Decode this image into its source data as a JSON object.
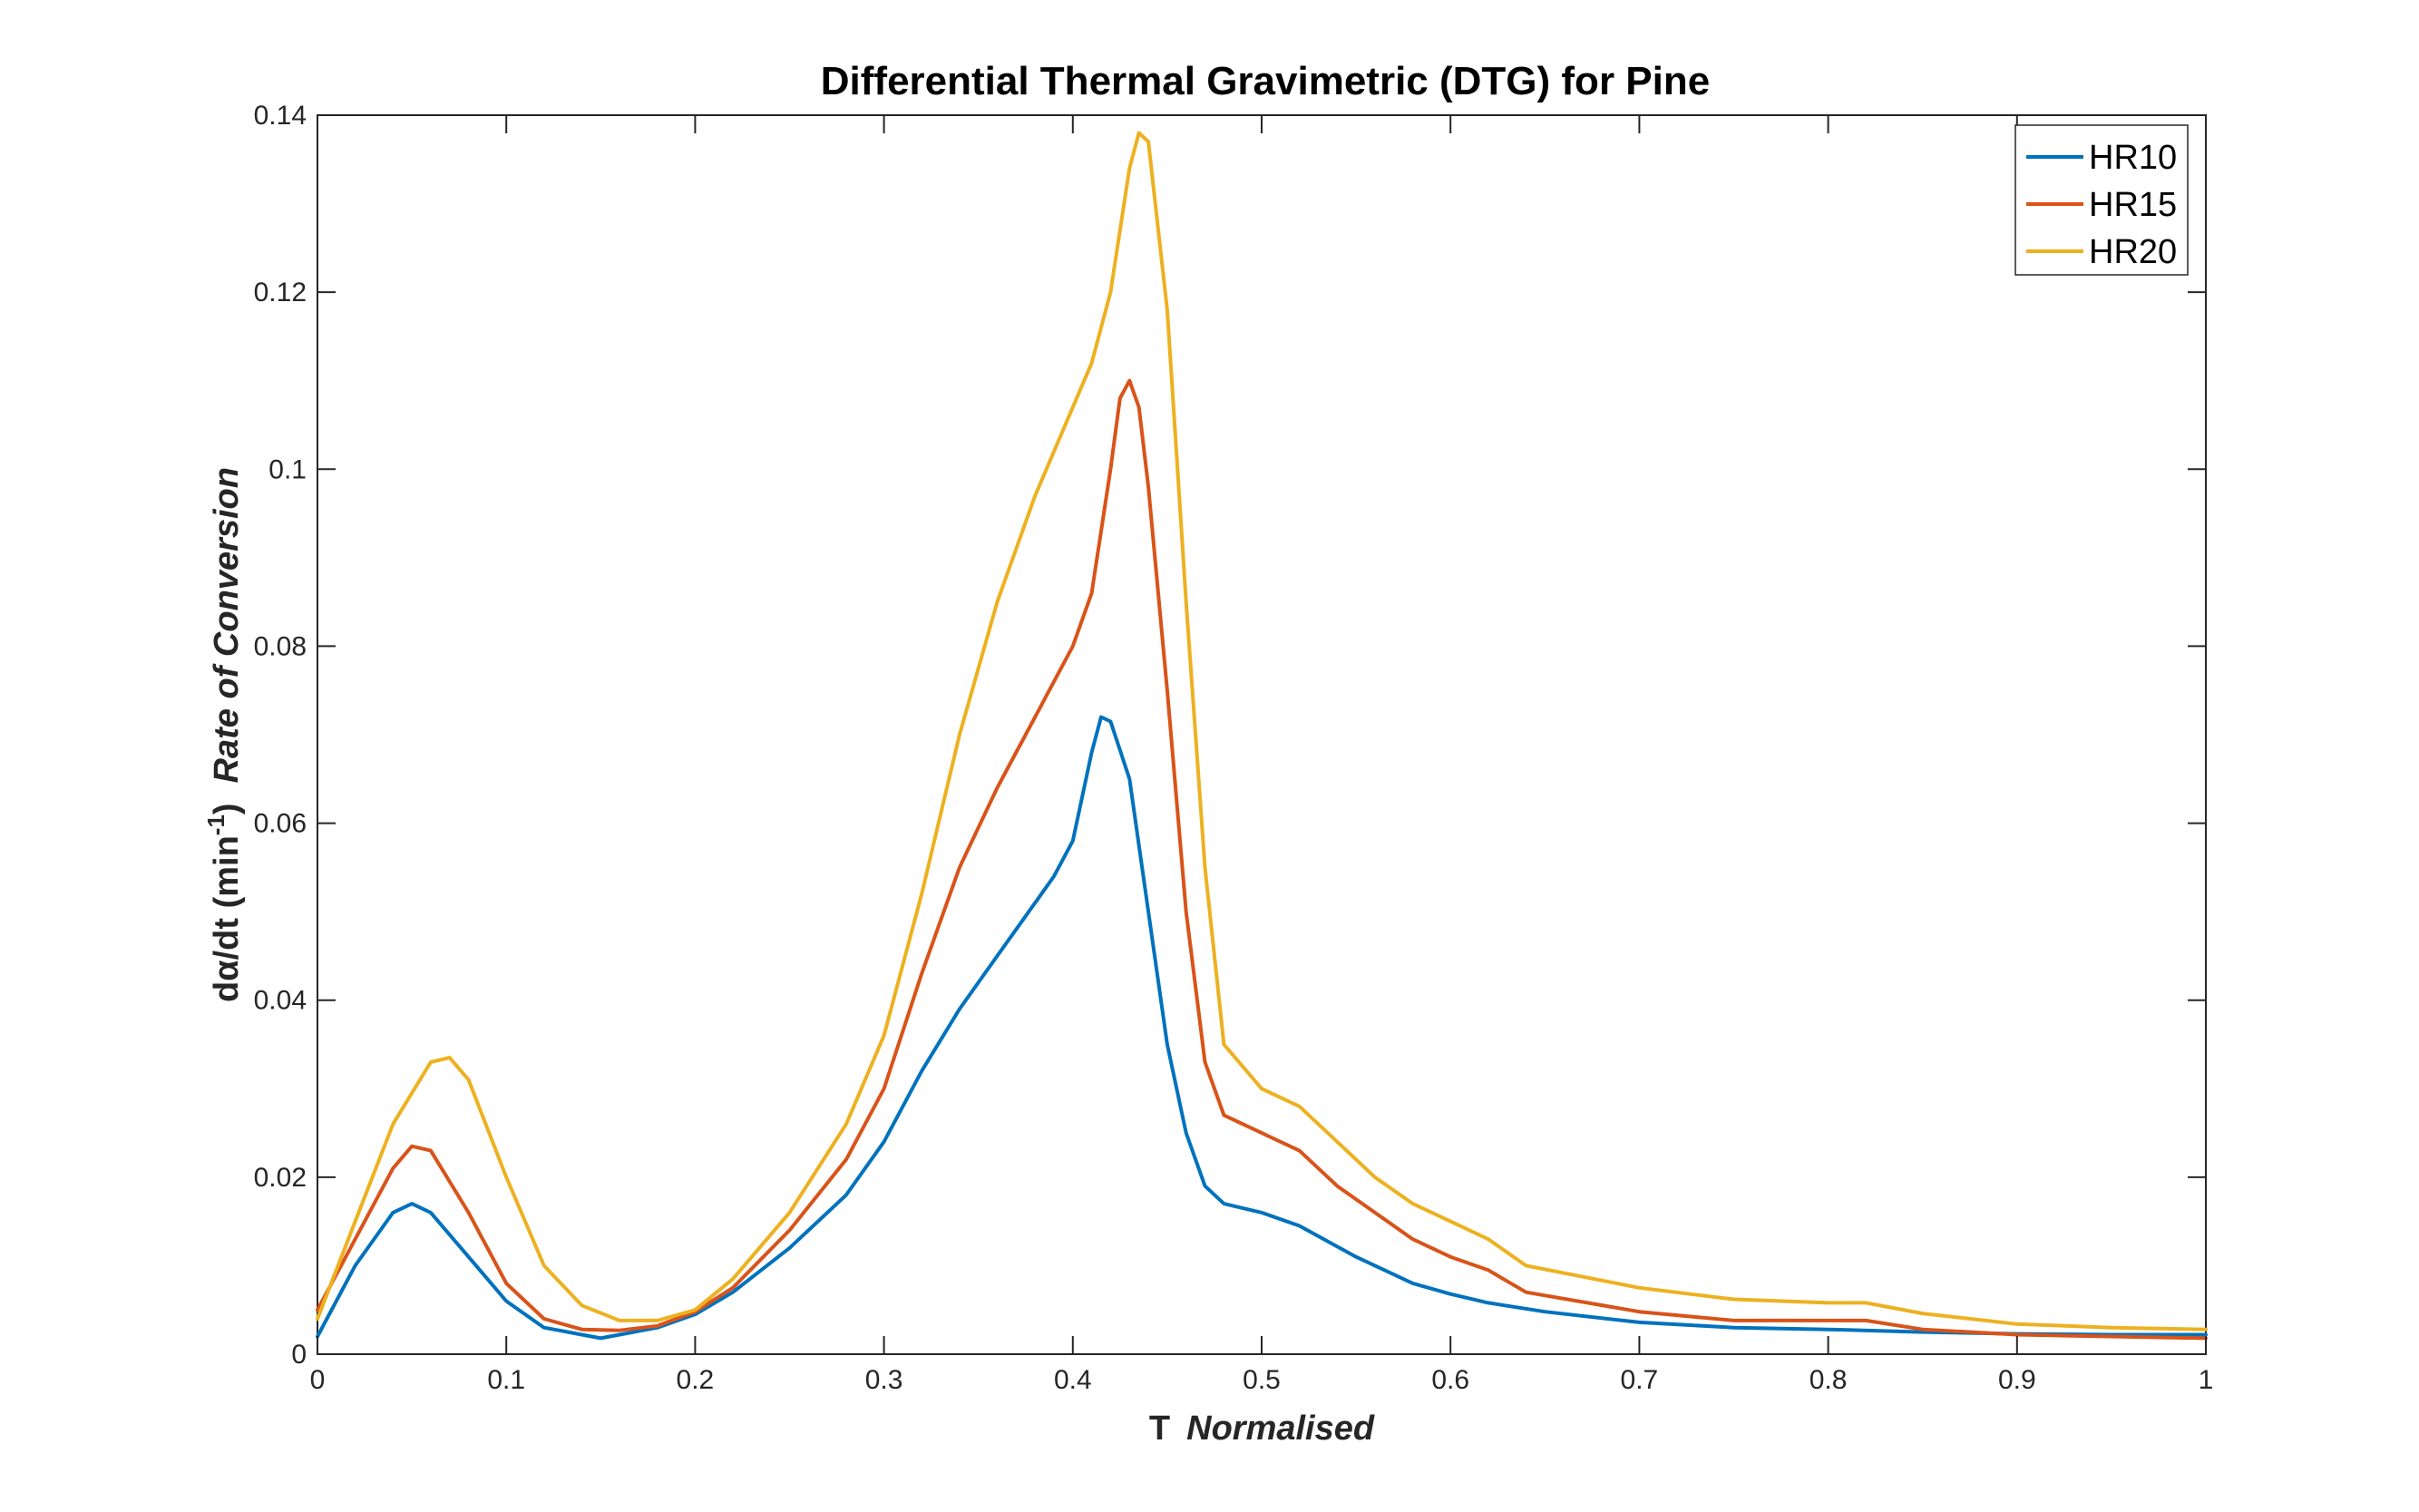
{
  "chart_data": {
    "type": "line",
    "title": "Differential Thermal Gravimetric (DTG) for Pine",
    "xlabel": {
      "main": "T",
      "italic": "Normalised"
    },
    "ylabel": {
      "main": "dα/dt (min",
      "sup": "-1",
      "close": ")",
      "italic": "Rate of Conversion"
    },
    "xlim": [
      0,
      1
    ],
    "ylim": [
      0,
      0.14
    ],
    "xticks": [
      0,
      0.1,
      0.2,
      0.3,
      0.4,
      0.5,
      0.6,
      0.7,
      0.8,
      0.9,
      1
    ],
    "xtick_labels": [
      "0",
      "0.1",
      "0.2",
      "0.3",
      "0.4",
      "0.5",
      "0.6",
      "0.7",
      "0.8",
      "0.9",
      "1"
    ],
    "yticks": [
      0,
      0.02,
      0.04,
      0.06,
      0.08,
      0.1,
      0.12,
      0.14
    ],
    "ytick_labels": [
      "0",
      "0.02",
      "0.04",
      "0.06",
      "0.08",
      "0.1",
      "0.12",
      "0.14"
    ],
    "grid": false,
    "legend_position": "top-right",
    "series": [
      {
        "name": "HR10",
        "color": "#0072BD",
        "x": [
          0,
          0.02,
          0.04,
          0.05,
          0.06,
          0.08,
          0.1,
          0.12,
          0.14,
          0.15,
          0.16,
          0.18,
          0.2,
          0.22,
          0.25,
          0.28,
          0.3,
          0.32,
          0.34,
          0.36,
          0.38,
          0.39,
          0.4,
          0.41,
          0.415,
          0.42,
          0.43,
          0.44,
          0.45,
          0.46,
          0.47,
          0.48,
          0.5,
          0.52,
          0.55,
          0.58,
          0.6,
          0.62,
          0.65,
          0.7,
          0.75,
          0.8,
          0.85,
          0.9,
          0.95,
          1
        ],
        "y": [
          0.002,
          0.01,
          0.016,
          0.017,
          0.016,
          0.011,
          0.006,
          0.003,
          0.0022,
          0.0018,
          0.0022,
          0.003,
          0.0045,
          0.007,
          0.012,
          0.018,
          0.024,
          0.032,
          0.039,
          0.045,
          0.051,
          0.054,
          0.058,
          0.068,
          0.072,
          0.0715,
          0.065,
          0.05,
          0.035,
          0.025,
          0.019,
          0.017,
          0.016,
          0.0145,
          0.011,
          0.008,
          0.0068,
          0.0058,
          0.0048,
          0.0036,
          0.003,
          0.0028,
          0.0025,
          0.0023,
          0.0022,
          0.0022
        ]
      },
      {
        "name": "HR15",
        "color": "#D95319",
        "x": [
          0,
          0.02,
          0.04,
          0.05,
          0.06,
          0.08,
          0.1,
          0.12,
          0.14,
          0.16,
          0.18,
          0.2,
          0.22,
          0.25,
          0.28,
          0.3,
          0.32,
          0.34,
          0.36,
          0.38,
          0.4,
          0.41,
          0.42,
          0.425,
          0.43,
          0.435,
          0.44,
          0.45,
          0.46,
          0.47,
          0.48,
          0.5,
          0.52,
          0.54,
          0.56,
          0.58,
          0.6,
          0.62,
          0.64,
          0.7,
          0.75,
          0.8,
          0.82,
          0.85,
          0.9,
          0.95,
          1
        ],
        "y": [
          0.005,
          0.013,
          0.021,
          0.0235,
          0.023,
          0.016,
          0.008,
          0.004,
          0.0028,
          0.0027,
          0.0032,
          0.0048,
          0.0075,
          0.014,
          0.022,
          0.03,
          0.043,
          0.055,
          0.064,
          0.072,
          0.08,
          0.086,
          0.1,
          0.108,
          0.11,
          0.107,
          0.098,
          0.075,
          0.05,
          0.033,
          0.027,
          0.025,
          0.023,
          0.019,
          0.016,
          0.013,
          0.011,
          0.0095,
          0.007,
          0.0048,
          0.0038,
          0.0038,
          0.0038,
          0.0028,
          0.0022,
          0.002,
          0.0018
        ]
      },
      {
        "name": "HR20",
        "color": "#EDB120",
        "x": [
          0,
          0.02,
          0.04,
          0.06,
          0.07,
          0.08,
          0.1,
          0.12,
          0.14,
          0.16,
          0.18,
          0.2,
          0.22,
          0.25,
          0.28,
          0.3,
          0.32,
          0.34,
          0.36,
          0.38,
          0.4,
          0.41,
          0.42,
          0.43,
          0.435,
          0.44,
          0.45,
          0.46,
          0.47,
          0.48,
          0.5,
          0.52,
          0.54,
          0.56,
          0.58,
          0.6,
          0.62,
          0.64,
          0.7,
          0.75,
          0.8,
          0.82,
          0.85,
          0.9,
          0.95,
          1
        ],
        "y": [
          0.004,
          0.015,
          0.026,
          0.033,
          0.0335,
          0.031,
          0.02,
          0.01,
          0.0055,
          0.0038,
          0.0038,
          0.005,
          0.0085,
          0.016,
          0.026,
          0.036,
          0.052,
          0.07,
          0.085,
          0.097,
          0.107,
          0.112,
          0.12,
          0.134,
          0.138,
          0.137,
          0.118,
          0.085,
          0.055,
          0.035,
          0.03,
          0.028,
          0.024,
          0.02,
          0.017,
          0.015,
          0.013,
          0.01,
          0.0075,
          0.0062,
          0.0058,
          0.0058,
          0.0046,
          0.0034,
          0.003,
          0.0028
        ]
      }
    ]
  }
}
